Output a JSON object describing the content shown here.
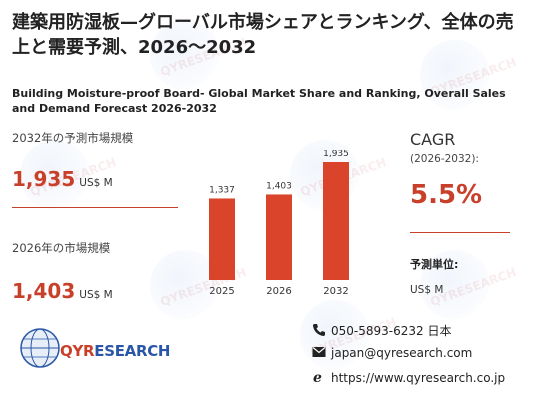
{
  "title_ja": "建築用防湿板—グローバル市場シェアとランキング、全体の売上と需要予測、2026～2032",
  "title_en": "Building Moisture-proof Board- Global Market Share and Ranking, Overall Sales and Demand Forecast 2026-2032",
  "forecast_2032": {
    "label": "2032年の予測市場規模",
    "value": "1,935",
    "unit": "US$ M"
  },
  "market_2026": {
    "label": "2026年の市場規模",
    "value": "1,403",
    "unit": "US$ M"
  },
  "cagr": {
    "label": "CAGR",
    "period": "(2026-2032):",
    "value": "5.5%"
  },
  "unit_info": {
    "label": "予測単位:",
    "value": "US$ M"
  },
  "logo": {
    "q": "QYR",
    "rest": "ESEARCH",
    "watermark": "QYRESEARCH"
  },
  "contact": {
    "phone": "050-5893-6232 日本",
    "email": "japan@qyresearch.com",
    "website": "https://www.qyresearch.co.jp",
    "icons": [
      "phone-icon",
      "mail-icon",
      "web-icon"
    ]
  },
  "colors": {
    "accent": "#c8402a",
    "brand_blue": "#2a56a8",
    "bar": "#d9442b"
  },
  "chart_data": {
    "type": "bar",
    "categories": [
      "2025",
      "2026",
      "2032"
    ],
    "values": [
      1337,
      1403,
      1935
    ],
    "value_labels": [
      "1,337",
      "1,403",
      "1,935"
    ],
    "title": "",
    "xlabel": "",
    "ylabel": "",
    "ylim": [
      0,
      1935
    ],
    "grid": false
  }
}
